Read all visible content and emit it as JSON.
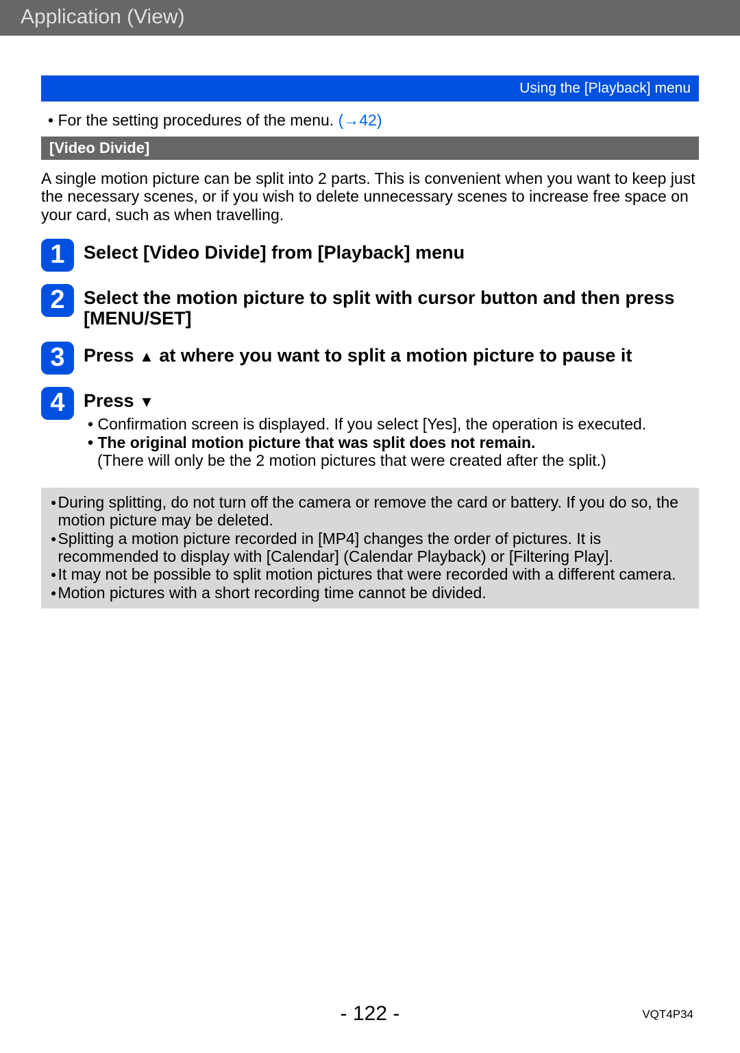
{
  "header": {
    "title": "Application (View)"
  },
  "breadcrumb": {
    "label": "Using the [Playback] menu"
  },
  "intro": {
    "text": "For the setting procedures of the menu. ",
    "link": "(→42)"
  },
  "section": {
    "title": "[Video Divide]"
  },
  "description": "A single motion picture can be split into 2 parts. This is convenient when you want to keep just the necessary scenes, or if you wish to delete unnecessary scenes to increase free space on your card, such as when travelling.",
  "steps": [
    {
      "n": "1",
      "title": "Select [Video Divide] from [Playback] menu"
    },
    {
      "n": "2",
      "title": "Select the motion picture to split with cursor button and then press [MENU/SET]"
    },
    {
      "n": "3",
      "title_pre": "Press ",
      "arrow": "▲",
      "title_post": " at where you want to split a motion picture to pause it"
    },
    {
      "n": "4",
      "title_pre": "Press ",
      "arrow": "▼",
      "subs": [
        {
          "text": "Confirmation screen is displayed. If you select [Yes], the operation is executed.",
          "bullet": true
        },
        {
          "text": "The original motion picture that was split does not remain.",
          "bullet": true,
          "bold": true
        },
        {
          "text": "(There will only be the 2 motion pictures that were created after the split.)",
          "indent": true
        }
      ]
    }
  ],
  "notes": [
    "During splitting, do not turn off the camera or remove the card or battery. If you do so, the motion picture may be deleted.",
    "Splitting a motion picture recorded in [MP4] changes the order of pictures. It is recommended to display with [Calendar] (Calendar Playback) or [Filtering Play].",
    "It may not be possible to split motion pictures that were recorded with a different camera.",
    "Motion pictures with a short recording time cannot be divided."
  ],
  "page": {
    "number": "- 122 -",
    "docid": "VQT4P34"
  },
  "colors": {
    "header_bg": "#676767",
    "accent_blue": "#0050e0",
    "link_blue": "#0066e6",
    "notes_bg": "#d8d8d8"
  }
}
